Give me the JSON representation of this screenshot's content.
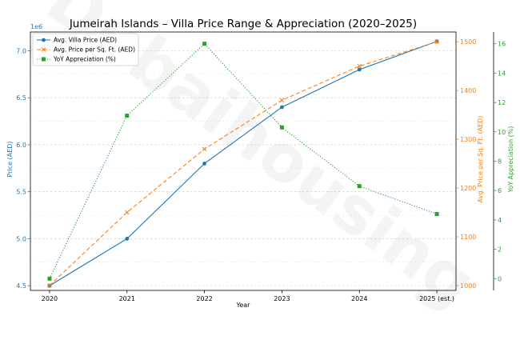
{
  "chart_data": {
    "type": "line",
    "title": "Jumeirah Islands – Villa Price Range & Appreciation (2020–2025)",
    "xlabel": "Year",
    "categories": [
      "2020",
      "2021",
      "2022",
      "2023",
      "2024",
      "2025 (est.)"
    ],
    "left_axis": {
      "label": "Price (AED)",
      "offset_text": "1e6",
      "ylim": [
        4.45,
        7.2
      ],
      "ticks": [
        "4.5",
        "5.0",
        "5.5",
        "6.0",
        "6.5",
        "7.0"
      ],
      "color": "#1f77b4"
    },
    "right_axis_1": {
      "label": "Avg. Price per Sq. Ft. (AED)",
      "ylim": [
        990,
        1520
      ],
      "ticks": [
        "1000",
        "1100",
        "1200",
        "1300",
        "1400",
        "1500"
      ],
      "color": "#ff7f0e"
    },
    "right_axis_2": {
      "label": "YoY Appreciation (%)",
      "ylim": [
        -0.8,
        16.8
      ],
      "ticks": [
        "0",
        "2",
        "4",
        "6",
        "8",
        "10",
        "12",
        "14",
        "16"
      ],
      "color": "#2ca02c"
    },
    "series": [
      {
        "name": "Avg. Villa Price (AED)",
        "axis": "left",
        "color": "#1f77b4",
        "line": "solid",
        "marker": "circle",
        "values": [
          4.5,
          5.0,
          5.8,
          6.4,
          6.8,
          7.1
        ]
      },
      {
        "name": "Avg. Price per Sq. Ft. (AED)",
        "axis": "right1",
        "color": "#ff7f0e",
        "line": "dashed",
        "marker": "x",
        "values": [
          1000,
          1150,
          1280,
          1380,
          1450,
          1500
        ]
      },
      {
        "name": "YoY Appreciation (%)",
        "axis": "right2",
        "color": "#2ca02c",
        "line": "dotted",
        "marker": "square",
        "values": [
          0,
          11.1,
          16.0,
          10.3,
          6.3,
          4.4
        ]
      }
    ],
    "grid": true,
    "legend_position": "top-left"
  },
  "watermark": "Dubaihousing"
}
